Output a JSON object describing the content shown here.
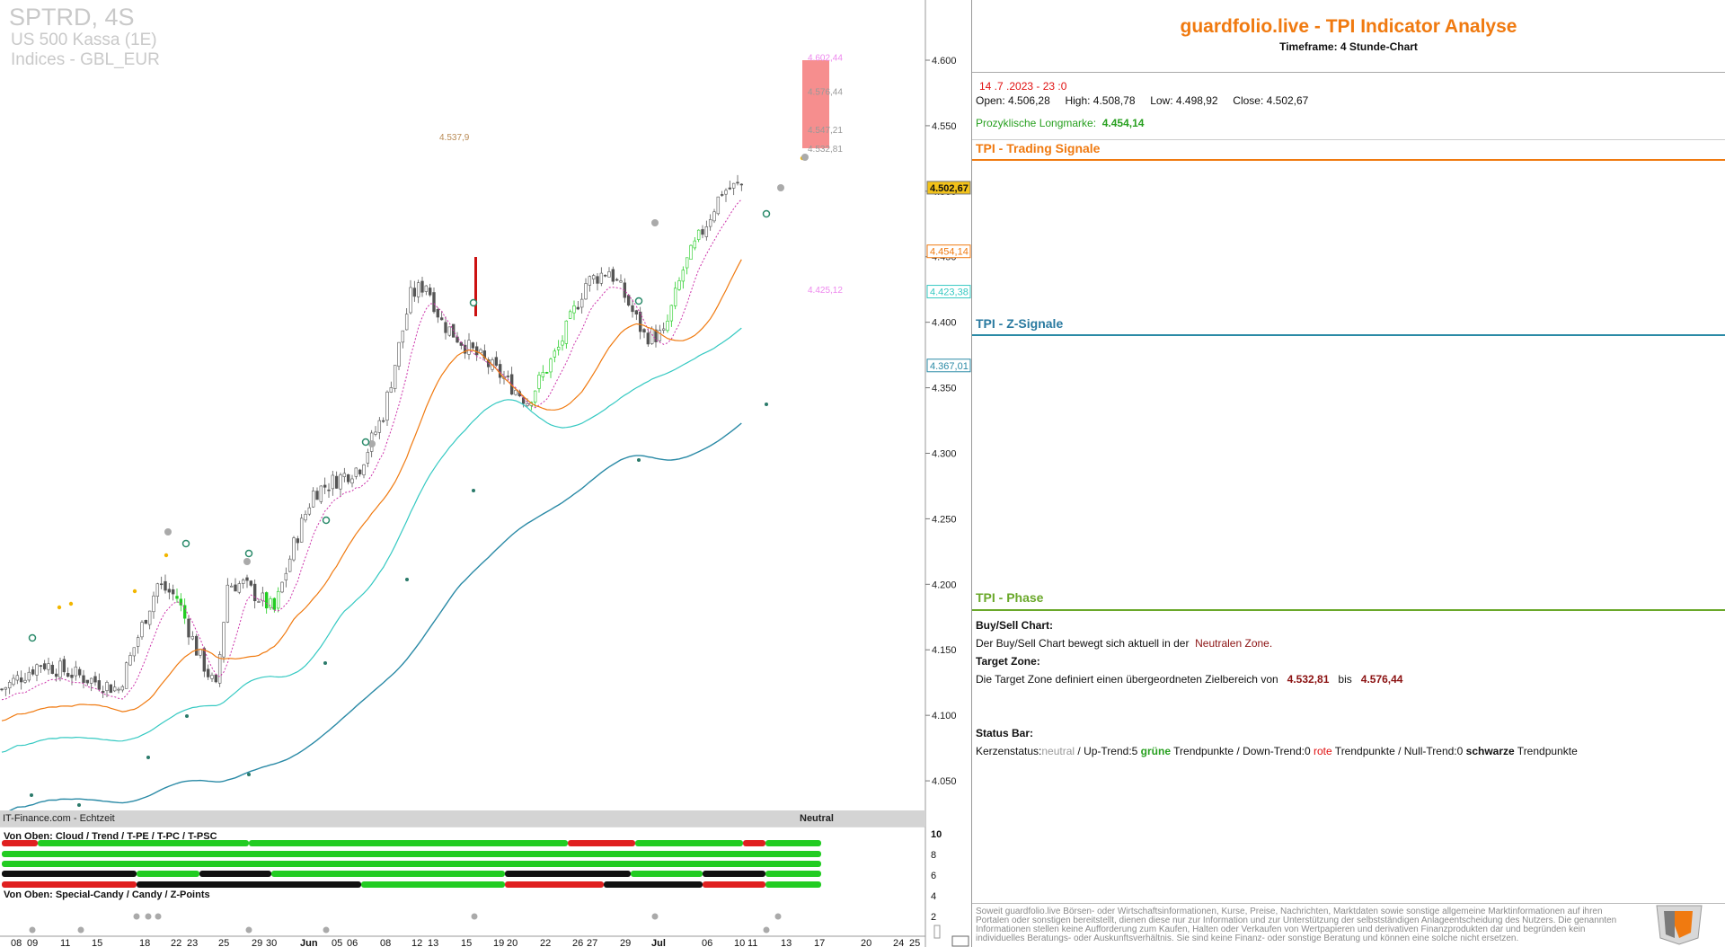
{
  "symbol": {
    "name": "SPTRD, 4S",
    "line2": "US 500 Kassa (1E)",
    "line3": "Indices - GBL_EUR"
  },
  "price_axis": {
    "ticks": [
      "4.600",
      "4.550",
      "4.500",
      "4.450",
      "4.400",
      "4.350",
      "4.300",
      "4.250",
      "4.200",
      "4.150",
      "4.100",
      "4.050"
    ]
  },
  "price_tags": [
    {
      "text": "4.502,67",
      "color": "#f2c21a",
      "kind": "current"
    },
    {
      "text": "4.454,14",
      "color": "#f07a10",
      "kind": "line"
    },
    {
      "text": "4.423,38",
      "color": "#35c9c2",
      "kind": "line"
    },
    {
      "text": "4.367,01",
      "color": "#2a8aa6",
      "kind": "line"
    }
  ],
  "chart_annotations": {
    "target_zone_high": "4.576,44",
    "target_zone_low": "4.532,81",
    "upper_projection": "4.602,44",
    "mid_projection": "4.547,21",
    "lower_projection": "4.425,12",
    "past_high": "4.537,9"
  },
  "date_axis": {
    "labels": [
      "08",
      "09",
      "11",
      "15",
      "18",
      "22",
      "23",
      "25",
      "29",
      "30",
      "Jun",
      "05",
      "06",
      "08",
      "12",
      "13",
      "15",
      "19",
      "20",
      "22",
      "26",
      "27",
      "29",
      "Jul",
      "06",
      "10",
      "11",
      "13",
      "17",
      "20",
      "24",
      "25"
    ]
  },
  "source_bar": {
    "left": "IT-Finance.com - Echtzeit",
    "right": "Neutral"
  },
  "status_panel": {
    "title_top": "Von Oben: Cloud / Trend / T-PE / T-PC / T-PSC",
    "title_bottom": "Von Oben: Special-Candy / Candy / Z-Points",
    "scale": [
      "10",
      "8",
      "6",
      "4",
      "2"
    ]
  },
  "analysis": {
    "title": "guardfolio.live - TPI Indicator Analyse",
    "timeframe": "Timeframe: 4 Stunde-Chart",
    "date": "14 .7 .2023  - 23 :0",
    "open_label": "Open:",
    "open": "4.506,28",
    "high_label": "High:",
    "high": "4.508,78",
    "low_label": "Low:",
    "low": "4.498,92",
    "close_label": "Close:",
    "close": "4.502,67",
    "longmark_label": "Prozyklische Longmarke:",
    "longmark": "4.454,14",
    "sec_trading": "TPI - Trading Signale",
    "sec_z": "TPI - Z-Signale",
    "sec_phase": "TPI - Phase",
    "buysell_head": "Buy/Sell Chart:",
    "buysell_text": "Der Buy/Sell Chart bewegt sich aktuell in der ",
    "buysell_zone": "Neutralen Zone.",
    "target_head": "Target Zone:",
    "target_text": "Die Target Zone definiert einen übergeordneten Zielbereich von ",
    "target_low": "4.532,81",
    "target_mid": "bis",
    "target_high": "4.576,44",
    "status_head": "Status Bar:",
    "status_p1": "Kerzenstatus:",
    "status_neutral": "neutral",
    "status_p2": " / Up-Trend:5 ",
    "status_green": "grüne",
    "status_p3": " Trendpunkte  / Down-Trend:0 ",
    "status_red": "rote",
    "status_p4": " Trendpunkte / Null-Trend:0 ",
    "status_black": "schwarze",
    "status_p5": " Trendpunkte",
    "disclaimer": "Soweit guardfolio.live Börsen- oder Wirtschaftsinformationen, Kurse, Preise, Nachrichten, Marktdaten sowie sonstige allgemeine Marktinformationen auf ihren Portalen oder sonstigen bereitstellt, dienen diese nur zur Information und zur Unterstützung der selbstständigen Anlageentscheidung des Nutzers. Die genannten Informationen stellen keine Aufforderung zum Kaufen, Halten oder Verkaufen von Wertpapieren und derivativen Finanzprodukten dar und begründen kein individuelles Beratungs- oder Auskunftsverhältnis. Sie sind keine Finanz- oder sonstige Beratung und können eine solche nicht ersetzen."
  },
  "colors": {
    "accent": "#f07a10",
    "teal": "#2a8aa6",
    "phase_green": "#6aa82a",
    "bull": "#22cc22",
    "bear": "#dd1111"
  },
  "icons": [
    "guardfolio-logo-icon",
    "scroll-icon",
    "calendar-icon"
  ]
}
